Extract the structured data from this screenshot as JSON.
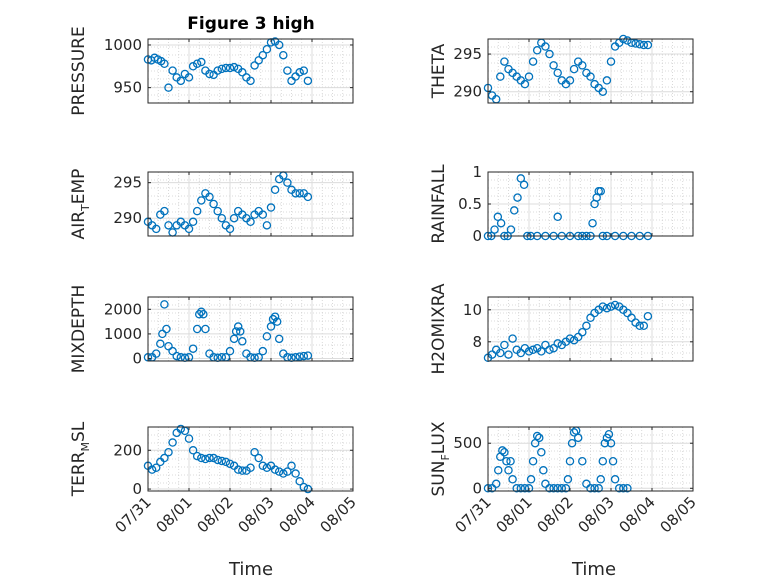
{
  "figure": {
    "title": "Figure 3 high",
    "marker_color": "#0072BD",
    "grid": true,
    "x_tick_labels": [
      "07/31",
      "08/01",
      "08/02",
      "08/03",
      "08/04",
      "08/05"
    ],
    "x_label": "Time"
  },
  "chart_data": [
    {
      "type": "scatter",
      "ylabel": "PRESSURE",
      "ylim": [
        932,
        1007
      ],
      "yticks": [
        950,
        1000
      ],
      "x": [
        0,
        0.08,
        0.16,
        0.24,
        0.32,
        0.4,
        0.5,
        0.6,
        0.7,
        0.8,
        0.9,
        1.0,
        1.1,
        1.2,
        1.3,
        1.4,
        1.5,
        1.6,
        1.7,
        1.8,
        1.9,
        2.0,
        2.1,
        2.2,
        2.3,
        2.4,
        2.5,
        2.6,
        2.7,
        2.8,
        2.9,
        3.0,
        3.1,
        3.2,
        3.3,
        3.4,
        3.5,
        3.6,
        3.7,
        3.8,
        3.9
      ],
      "y": [
        983,
        982,
        985,
        983,
        981,
        978,
        950,
        970,
        962,
        958,
        966,
        962,
        975,
        978,
        980,
        970,
        966,
        965,
        970,
        972,
        973,
        973,
        974,
        972,
        968,
        962,
        958,
        976,
        982,
        988,
        995,
        1003,
        1004,
        1000,
        988,
        970,
        958,
        963,
        968,
        970,
        958
      ]
    },
    {
      "type": "scatter",
      "ylabel": "THETA",
      "ylim": [
        288.5,
        297
      ],
      "yticks": [
        290,
        295
      ],
      "x": [
        0,
        0.1,
        0.2,
        0.3,
        0.4,
        0.5,
        0.6,
        0.7,
        0.8,
        0.9,
        1.0,
        1.1,
        1.2,
        1.3,
        1.4,
        1.5,
        1.6,
        1.7,
        1.8,
        1.9,
        2.0,
        2.1,
        2.2,
        2.3,
        2.4,
        2.5,
        2.6,
        2.7,
        2.8,
        2.9,
        3.0,
        3.1,
        3.2,
        3.3,
        3.4,
        3.5,
        3.6,
        3.7,
        3.8,
        3.9
      ],
      "y": [
        290.5,
        289.5,
        289,
        292,
        294,
        293,
        292.5,
        292,
        291.5,
        291,
        292,
        294,
        295.5,
        296.5,
        296,
        295,
        293.5,
        292.5,
        291.5,
        291,
        291.5,
        293,
        294,
        293.5,
        292.5,
        292,
        291,
        290.5,
        290,
        291.5,
        294,
        296,
        296.5,
        297,
        296.8,
        296.5,
        296.4,
        296.3,
        296.2,
        296.2
      ]
    },
    {
      "type": "scatter",
      "ylabel": "AIR_TEMP",
      "ylim": [
        287.5,
        296.5
      ],
      "yticks": [
        290,
        295
      ],
      "x": [
        0,
        0.1,
        0.2,
        0.3,
        0.4,
        0.5,
        0.6,
        0.7,
        0.8,
        0.9,
        1.0,
        1.1,
        1.2,
        1.3,
        1.4,
        1.5,
        1.6,
        1.7,
        1.8,
        1.9,
        2.0,
        2.1,
        2.2,
        2.3,
        2.4,
        2.5,
        2.6,
        2.7,
        2.8,
        2.9,
        3.0,
        3.1,
        3.2,
        3.3,
        3.4,
        3.5,
        3.6,
        3.7,
        3.8,
        3.9
      ],
      "y": [
        289.5,
        289,
        288.5,
        290.5,
        291,
        289,
        288,
        289,
        289.5,
        289,
        288.5,
        289.5,
        291,
        292.5,
        293.5,
        293,
        292,
        291,
        290,
        289,
        288.5,
        290,
        291,
        290.5,
        290,
        289.5,
        290.5,
        291,
        290.5,
        289,
        291.5,
        294,
        295.5,
        296,
        295,
        294,
        293.5,
        293.5,
        293.5,
        293
      ]
    },
    {
      "type": "scatter",
      "ylabel": "RAINFALL",
      "ylim": [
        0,
        1
      ],
      "yticks": [
        0,
        0.5,
        1
      ],
      "x": [
        0,
        0.08,
        0.16,
        0.24,
        0.32,
        0.4,
        0.48,
        0.56,
        0.64,
        0.72,
        0.8,
        0.88,
        0.96,
        1.04,
        1.2,
        1.4,
        1.6,
        1.7,
        1.8,
        2.0,
        2.2,
        2.3,
        2.4,
        2.5,
        2.55,
        2.6,
        2.65,
        2.7,
        2.75,
        2.8,
        2.9,
        3.1,
        3.3,
        3.5,
        3.7,
        3.9
      ],
      "y": [
        0,
        0,
        0.1,
        0.3,
        0.2,
        0,
        0,
        0.1,
        0.4,
        0.6,
        0.9,
        0.8,
        0,
        0,
        0,
        0,
        0,
        0.3,
        0,
        0,
        0,
        0,
        0,
        0,
        0.2,
        0.5,
        0.6,
        0.7,
        0.7,
        0,
        0,
        0,
        0,
        0,
        0,
        0
      ]
    },
    {
      "type": "scatter",
      "ylabel": "MIXDEPTH",
      "ylim": [
        -100,
        2500
      ],
      "yticks": [
        0,
        1000,
        2000
      ],
      "x": [
        0,
        0.1,
        0.2,
        0.3,
        0.35,
        0.4,
        0.45,
        0.5,
        0.6,
        0.7,
        0.8,
        0.9,
        1.0,
        1.1,
        1.2,
        1.25,
        1.3,
        1.35,
        1.4,
        1.5,
        1.6,
        1.7,
        1.8,
        1.9,
        2.0,
        2.1,
        2.15,
        2.2,
        2.25,
        2.3,
        2.4,
        2.5,
        2.6,
        2.7,
        2.8,
        2.9,
        3.0,
        3.05,
        3.1,
        3.15,
        3.2,
        3.3,
        3.4,
        3.5,
        3.6,
        3.7,
        3.8,
        3.9
      ],
      "y": [
        50,
        50,
        200,
        600,
        1000,
        2200,
        1200,
        500,
        300,
        100,
        50,
        30,
        50,
        400,
        1200,
        1800,
        1900,
        1800,
        1200,
        200,
        50,
        30,
        50,
        50,
        300,
        800,
        1100,
        1300,
        1100,
        700,
        200,
        50,
        30,
        50,
        300,
        900,
        1300,
        1600,
        1700,
        1500,
        800,
        200,
        50,
        30,
        50,
        80,
        100,
        120
      ]
    },
    {
      "type": "scatter",
      "ylabel": "H2OMIXRA",
      "ylim": [
        6.8,
        10.8
      ],
      "yticks": [
        8,
        10
      ],
      "x": [
        0,
        0.1,
        0.2,
        0.3,
        0.4,
        0.5,
        0.6,
        0.7,
        0.8,
        0.9,
        1.0,
        1.1,
        1.2,
        1.3,
        1.4,
        1.5,
        1.6,
        1.7,
        1.8,
        1.9,
        2.0,
        2.1,
        2.2,
        2.3,
        2.4,
        2.5,
        2.6,
        2.7,
        2.8,
        2.9,
        3.0,
        3.1,
        3.2,
        3.3,
        3.4,
        3.5,
        3.6,
        3.7,
        3.8,
        3.9
      ],
      "y": [
        7.0,
        7.2,
        7.5,
        7.3,
        7.8,
        7.2,
        8.2,
        7.5,
        7.3,
        7.6,
        7.4,
        7.5,
        7.6,
        7.4,
        7.8,
        7.5,
        7.6,
        7.9,
        7.8,
        8.0,
        8.2,
        8.1,
        8.3,
        8.6,
        9.0,
        9.5,
        9.8,
        10.0,
        10.2,
        10.1,
        10.2,
        10.3,
        10.2,
        10.0,
        9.8,
        9.5,
        9.2,
        9.0,
        9.0,
        9.6
      ]
    },
    {
      "type": "scatter",
      "ylabel": "TERR_MSL",
      "ylim": [
        -10,
        320
      ],
      "yticks": [
        0,
        200
      ],
      "x": [
        0,
        0.1,
        0.2,
        0.3,
        0.4,
        0.5,
        0.6,
        0.7,
        0.8,
        0.9,
        1.0,
        1.1,
        1.2,
        1.3,
        1.4,
        1.5,
        1.6,
        1.7,
        1.8,
        1.9,
        2.0,
        2.1,
        2.2,
        2.3,
        2.4,
        2.5,
        2.6,
        2.7,
        2.8,
        2.9,
        3.0,
        3.1,
        3.2,
        3.3,
        3.4,
        3.5,
        3.6,
        3.7,
        3.8,
        3.9
      ],
      "y": [
        120,
        100,
        110,
        140,
        160,
        190,
        240,
        290,
        310,
        300,
        260,
        200,
        170,
        160,
        155,
        160,
        160,
        150,
        145,
        140,
        130,
        120,
        100,
        95,
        95,
        110,
        190,
        160,
        120,
        110,
        120,
        100,
        90,
        80,
        90,
        120,
        80,
        40,
        10,
        0
      ]
    },
    {
      "type": "scatter",
      "ylabel": "SUN_FLUX",
      "ylim": [
        -30,
        680
      ],
      "yticks": [
        0,
        500
      ],
      "x": [
        0,
        0.1,
        0.2,
        0.25,
        0.3,
        0.35,
        0.4,
        0.45,
        0.5,
        0.55,
        0.6,
        0.7,
        0.8,
        0.9,
        1.0,
        1.05,
        1.1,
        1.15,
        1.2,
        1.25,
        1.3,
        1.35,
        1.4,
        1.5,
        1.6,
        1.7,
        1.8,
        1.9,
        1.95,
        2.0,
        2.05,
        2.1,
        2.15,
        2.2,
        2.3,
        2.4,
        2.5,
        2.6,
        2.7,
        2.75,
        2.8,
        2.85,
        2.9,
        2.95,
        3.0,
        3.05,
        3.1,
        3.2,
        3.3,
        3.4
      ],
      "y": [
        0,
        0,
        50,
        200,
        350,
        420,
        400,
        300,
        200,
        300,
        100,
        0,
        0,
        0,
        0,
        100,
        300,
        500,
        580,
        560,
        400,
        200,
        50,
        0,
        0,
        0,
        0,
        0,
        100,
        300,
        500,
        620,
        640,
        560,
        300,
        50,
        0,
        0,
        0,
        100,
        300,
        500,
        560,
        600,
        500,
        300,
        100,
        0,
        0,
        0
      ]
    }
  ]
}
